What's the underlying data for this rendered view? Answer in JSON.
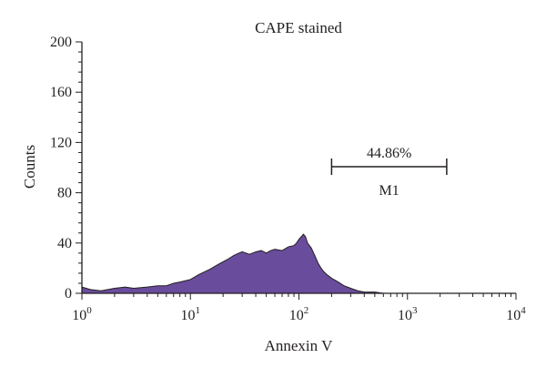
{
  "chart_data": {
    "type": "area",
    "title": "CAPE stained",
    "xlabel": "Annexin V",
    "ylabel": "Counts",
    "x_scale": "log10",
    "xlim": [
      1,
      10000
    ],
    "ylim": [
      0,
      200
    ],
    "x_tick_labels": [
      {
        "base": "10",
        "exp": "0"
      },
      {
        "base": "10",
        "exp": "1"
      },
      {
        "base": "10",
        "exp": "2"
      },
      {
        "base": "10",
        "exp": "3"
      },
      {
        "base": "10",
        "exp": "4"
      }
    ],
    "y_ticks": [
      0,
      40,
      80,
      120,
      160,
      200
    ],
    "fill_color": "#6a4c9c",
    "outline_color": "#231f20",
    "histogram": {
      "x": [
        1.0,
        1.2,
        1.5,
        2.0,
        2.5,
        3.0,
        4.0,
        5.0,
        6.0,
        7.0,
        8.0,
        10,
        12,
        15,
        18,
        22,
        25,
        28,
        30,
        35,
        40,
        45,
        50,
        55,
        60,
        70,
        80,
        90,
        95,
        100,
        105,
        110,
        115,
        120,
        130,
        140,
        150,
        160,
        170,
        180,
        200,
        230,
        260,
        300,
        350,
        400,
        500,
        600,
        800,
        1000,
        2000,
        10000
      ],
      "y": [
        5,
        3,
        2,
        4,
        5,
        4,
        5,
        6,
        6,
        8,
        9,
        11,
        15,
        19,
        23,
        27,
        30,
        32,
        33,
        31,
        33,
        34,
        32,
        34,
        35,
        34,
        37,
        38,
        40,
        43,
        45,
        47,
        45,
        40,
        36,
        30,
        24,
        20,
        17,
        15,
        12,
        9,
        6,
        4,
        2,
        1,
        1,
        0,
        0,
        0,
        0,
        0
      ]
    },
    "marker": {
      "label": "M1",
      "percent": "44.86%",
      "x_range": [
        200,
        2300
      ],
      "y": 80
    }
  }
}
